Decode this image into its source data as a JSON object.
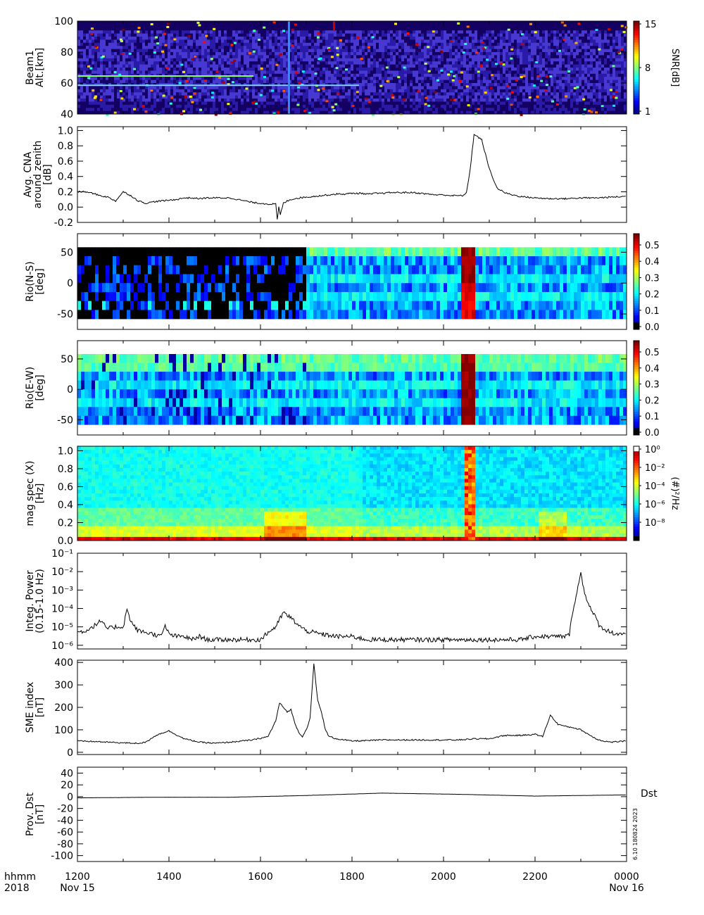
{
  "chart_data": [
    {
      "type": "heatmap",
      "ylabel": [
        "Beam1",
        "Alt.[km]"
      ],
      "ylim": [
        40,
        100
      ],
      "yticks": [
        40,
        60,
        80,
        100
      ],
      "colorbar": {
        "label": "SNR[dB]",
        "ticks": [
          "1",
          "8",
          "15"
        ]
      }
    },
    {
      "type": "line",
      "ylabel": [
        "Avg. CNA",
        "around zenith",
        "[dB]"
      ],
      "ylim": [
        -0.2,
        1.05
      ],
      "yticks": [
        "1.0",
        "0.8",
        "0.6",
        "0.4",
        "0.2",
        "0.0",
        "-0.2"
      ],
      "x": [
        0,
        10,
        20,
        30,
        40,
        50,
        60,
        70,
        80,
        90,
        100,
        110,
        120,
        130,
        140,
        150,
        160,
        170,
        180,
        190,
        200,
        210,
        220,
        230,
        240,
        250,
        260,
        262,
        264,
        266,
        270,
        275,
        280,
        290,
        300,
        310,
        320,
        330,
        340,
        350,
        360,
        365,
        370,
        374,
        378,
        385,
        390,
        400,
        410,
        420,
        430,
        440,
        450,
        460,
        470,
        480,
        490,
        500,
        505,
        510,
        515,
        520,
        530,
        540,
        550,
        560,
        570,
        580,
        600,
        620,
        640,
        660,
        680,
        700,
        720
      ],
      "values": [
        0.2,
        0.2,
        0.18,
        0.15,
        0.13,
        0.08,
        0.2,
        0.15,
        0.08,
        0.05,
        0.07,
        0.08,
        0.09,
        0.1,
        0.12,
        0.12,
        0.11,
        0.12,
        0.12,
        0.12,
        0.12,
        0.1,
        0.08,
        0.06,
        0.05,
        0.04,
        0.04,
        -0.17,
        0.0,
        -0.1,
        0.05,
        0.08,
        0.1,
        0.12,
        0.13,
        0.14,
        0.15,
        0.16,
        0.17,
        0.17,
        0.18,
        0.18,
        0.18,
        0.18,
        0.17,
        0.17,
        0.18,
        0.18,
        0.19,
        0.19,
        0.19,
        0.19,
        0.18,
        0.17,
        0.16,
        0.16,
        0.15,
        0.15,
        0.15,
        0.18,
        0.5,
        0.95,
        0.88,
        0.5,
        0.25,
        0.19,
        0.16,
        0.14,
        0.12,
        0.11,
        0.11,
        0.12,
        0.12,
        0.13,
        0.14
      ]
    },
    {
      "type": "heatmap",
      "ylabel": [
        "Rio(N-S)",
        "[deg]"
      ],
      "ylim": [
        -75,
        80
      ],
      "yticks": [
        50,
        0,
        -50
      ],
      "colorbar": {
        "ticks": [
          "0.0",
          "0.1",
          "0.2",
          "0.3",
          "0.4",
          "0.5"
        ]
      }
    },
    {
      "type": "heatmap",
      "ylabel": [
        "Rio(E-W)",
        "[deg]"
      ],
      "ylim": [
        -75,
        80
      ],
      "yticks": [
        50,
        0,
        -50
      ],
      "colorbar": {
        "ticks": [
          "0.0",
          "0.1",
          "0.2",
          "0.3",
          "0.4",
          "0.5"
        ]
      }
    },
    {
      "type": "heatmap",
      "ylabel": [
        "mag spec (X)",
        "[Hz]"
      ],
      "ylim": [
        0,
        1.05
      ],
      "yticks": [
        "1.0",
        "0.8",
        "0.6",
        "0.4",
        "0.2",
        "0.0"
      ],
      "colorbar": {
        "label": "(#)²/Hz",
        "ticks": [
          "10⁰",
          "10⁻²",
          "10⁻⁴",
          "10⁻⁶",
          "10⁻⁸"
        ]
      }
    },
    {
      "type": "line",
      "log_y": true,
      "ylabel": [
        "Integ. Power",
        "(0.15-1.0 Hz)"
      ],
      "ylim_exp": [
        -6.2,
        -1
      ],
      "yticks": [
        "10⁻¹",
        "10⁻²",
        "10⁻³",
        "10⁻⁴",
        "10⁻⁵",
        "10⁻⁶"
      ],
      "x": [
        0,
        10,
        20,
        30,
        40,
        50,
        60,
        65,
        70,
        75,
        80,
        90,
        100,
        110,
        115,
        120,
        130,
        140,
        150,
        160,
        170,
        180,
        200,
        220,
        240,
        250,
        260,
        270,
        280,
        290,
        300,
        320,
        340,
        360,
        380,
        400,
        420,
        440,
        460,
        480,
        500,
        520,
        540,
        560,
        580,
        600,
        620,
        640,
        645,
        650,
        655,
        660,
        665,
        670,
        675,
        680,
        685,
        690,
        700,
        710,
        720
      ],
      "values": [
        5e-06,
        6e-06,
        1e-05,
        2e-05,
        8e-06,
        1e-05,
        1e-05,
        9e-05,
        2e-05,
        1e-05,
        6e-06,
        5e-06,
        4e-06,
        3e-06,
        1.2e-05,
        4e-06,
        3e-06,
        3e-06,
        2e-06,
        3e-06,
        2e-06,
        2e-06,
        2e-06,
        2e-06,
        2e-06,
        5e-06,
        1e-05,
        6e-05,
        3e-05,
        1.2e-05,
        6e-06,
        4e-06,
        3e-06,
        3e-06,
        2e-06,
        2e-06,
        2e-06,
        2e-06,
        2e-06,
        2e-06,
        2e-06,
        2e-06,
        2e-06,
        2e-06,
        2e-06,
        3e-06,
        3e-06,
        3e-06,
        4e-06,
        0.0001,
        0.0008,
        0.008,
        0.0007,
        0.0002,
        6e-05,
        3e-05,
        1e-05,
        8e-06,
        5e-06,
        4e-06,
        5e-06
      ]
    },
    {
      "type": "line",
      "ylabel": [
        "SME index",
        "[nT]"
      ],
      "ylim": [
        -10,
        410
      ],
      "yticks": [
        400,
        300,
        200,
        100,
        0
      ],
      "x": [
        0,
        20,
        40,
        60,
        80,
        90,
        100,
        110,
        120,
        140,
        160,
        180,
        200,
        230,
        250,
        260,
        265,
        270,
        275,
        280,
        285,
        290,
        295,
        300,
        305,
        310,
        315,
        320,
        325,
        330,
        340,
        360,
        380,
        400,
        420,
        440,
        460,
        480,
        500,
        520,
        540,
        560,
        580,
        600,
        610,
        620,
        630,
        640,
        650,
        660,
        670,
        680,
        690,
        700,
        710,
        720
      ],
      "values": [
        50,
        48,
        45,
        42,
        40,
        45,
        70,
        85,
        95,
        60,
        45,
        40,
        45,
        55,
        70,
        140,
        220,
        200,
        180,
        190,
        130,
        90,
        70,
        100,
        150,
        395,
        230,
        180,
        100,
        70,
        60,
        50,
        52,
        55,
        55,
        55,
        55,
        55,
        55,
        60,
        60,
        75,
        75,
        80,
        70,
        165,
        125,
        115,
        110,
        100,
        80,
        60,
        50,
        45,
        48,
        50
      ]
    },
    {
      "type": "line",
      "ylabel": [
        "Prov. Dst",
        "[nT]"
      ],
      "ylim": [
        -110,
        50
      ],
      "yticks": [
        40,
        20,
        0,
        -20,
        -40,
        -60,
        -80,
        -100
      ],
      "series_label": "Dst",
      "x": [
        0,
        100,
        200,
        300,
        400,
        500,
        600,
        720
      ],
      "values": [
        -2,
        -1,
        -1,
        2,
        6,
        4,
        1,
        3
      ]
    }
  ],
  "x_axis": {
    "row1_labels": [
      "1200",
      "1400",
      "1600",
      "1800",
      "2000",
      "2200",
      "0000"
    ],
    "row2_labels": [
      "Nov 15",
      "",
      "",
      "",
      "",
      "",
      "Nov 16"
    ],
    "left_caption_1": "hhmm",
    "left_caption_2": "2018"
  },
  "footnote": "6.10 180824 2023"
}
